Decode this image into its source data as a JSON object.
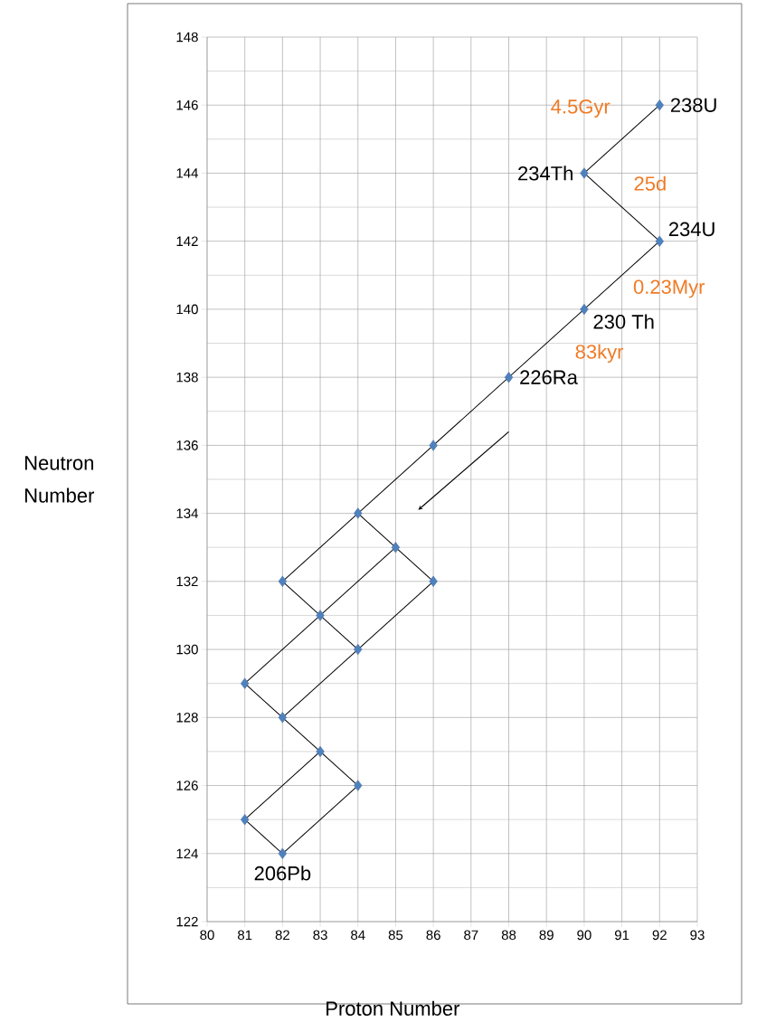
{
  "chart_data": {
    "type": "scatter",
    "xlabel": "Proton Number",
    "ylabel": "Neutron Number",
    "xlim": [
      80,
      93
    ],
    "ylim": [
      122,
      148
    ],
    "xticks": [
      80,
      81,
      82,
      83,
      84,
      85,
      86,
      87,
      88,
      89,
      90,
      91,
      92,
      93
    ],
    "yticks": [
      122,
      124,
      126,
      128,
      130,
      132,
      134,
      136,
      138,
      140,
      142,
      144,
      146,
      148
    ],
    "grid": true,
    "marker": "diamond",
    "series": [
      {
        "type": "line",
        "marker": "none",
        "color": "#000000",
        "x": [
          92,
          90,
          92,
          84
        ],
        "values": [
          146,
          144,
          142,
          134
        ]
      },
      {
        "type": "line",
        "marker": "none",
        "color": "#000000",
        "x": [
          82,
          84,
          86
        ],
        "values": [
          132,
          134,
          132
        ]
      },
      {
        "type": "line",
        "marker": "none",
        "color": "#000000",
        "x": [
          82,
          84
        ],
        "values": [
          132,
          130
        ]
      },
      {
        "type": "line",
        "marker": "none",
        "color": "#000000",
        "x": [
          85,
          81
        ],
        "values": [
          133,
          129
        ]
      },
      {
        "type": "line",
        "marker": "none",
        "color": "#000000",
        "x": [
          86,
          82
        ],
        "values": [
          132,
          128
        ]
      },
      {
        "type": "line",
        "marker": "none",
        "color": "#000000",
        "x": [
          81,
          84,
          82,
          81,
          83
        ],
        "values": [
          129,
          126,
          124,
          125,
          127
        ]
      },
      {
        "color": "#4f81bd",
        "x": [
          86,
          84,
          82,
          85,
          86,
          83,
          84,
          81,
          82,
          83,
          84,
          81
        ],
        "values": [
          136,
          134,
          132,
          133,
          132,
          131,
          130,
          129,
          128,
          127,
          126,
          125
        ]
      },
      {
        "name": "238U",
        "color": "#4f81bd",
        "x": [
          92
        ],
        "values": [
          146
        ]
      },
      {
        "name": "234Th",
        "color": "#4f81bd",
        "x": [
          90
        ],
        "values": [
          144
        ]
      },
      {
        "name": "234U",
        "color": "#4f81bd",
        "x": [
          92
        ],
        "values": [
          142
        ]
      },
      {
        "name": "230 Th",
        "color": "#4f81bd",
        "x": [
          90
        ],
        "values": [
          140
        ]
      },
      {
        "name": "226Ra",
        "color": "#4f81bd",
        "x": [
          88
        ],
        "values": [
          138
        ]
      },
      {
        "name": "206Pb",
        "color": "#4f81bd",
        "x": [
          82
        ],
        "values": [
          124
        ]
      }
    ],
    "annotations": [
      "4.5Gyr",
      "25d",
      "0.23Myr",
      "83kyr"
    ]
  }
}
